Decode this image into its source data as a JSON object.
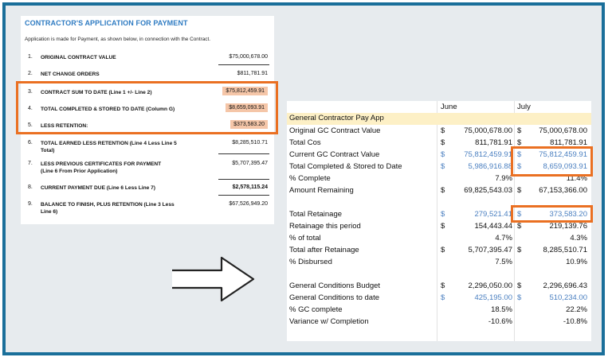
{
  "form": {
    "title": "CONTRACTOR'S APPLICATION FOR PAYMENT",
    "intro": "Application is made for Payment, as shown below, in connection with the Contract.",
    "rows": [
      {
        "num": "1.",
        "label": "ORIGINAL CONTRACT VALUE",
        "value": "$75,000,678.00"
      },
      {
        "num": "2.",
        "label": "NET CHANGE ORDERS",
        "value": "$811,781.91"
      },
      {
        "num": "3.",
        "label": "CONTRACT SUM TO DATE (Line 1 +/- Line 2)",
        "value": "$75,812,459.91"
      },
      {
        "num": "4.",
        "label": "TOTAL COMPLETED & STORED TO DATE (Column G)",
        "value": "$8,659,093.91"
      },
      {
        "num": "5.",
        "label": "LESS RETENTION:",
        "value": "$373,583.20"
      },
      {
        "num": "6.",
        "label": "TOTAL EARNED LESS RETENTION (Line 4 Less Line 5\nTotal)",
        "value": "$8,285,510.71"
      },
      {
        "num": "7.",
        "label": "LESS PREVIOUS CERTIFICATES FOR PAYMENT\n(Line 6 From Prior Application)",
        "value": "$5,707,395.47"
      },
      {
        "num": "8.",
        "label": "CURRENT PAYMENT DUE (Line 6 Less Line 7)",
        "value": "$2,578,115.24"
      },
      {
        "num": "9.",
        "label": "BALANCE TO FINISH, PLUS RETENTION (Line 3 Less\nLine 6)",
        "value": "$67,526,949.20"
      }
    ]
  },
  "sheet": {
    "col_june": "June",
    "col_july": "July",
    "section_title": "General Contractor Pay App",
    "rows": [
      {
        "label": "Original GC Contract Value",
        "d1": "$",
        "june": "75,000,678.00",
        "d2": "$",
        "july": "75,000,678.00"
      },
      {
        "label": "Total Cos",
        "d1": "$",
        "june": "811,781.91",
        "d2": "$",
        "july": "811,781.91"
      },
      {
        "label": "Current GC Contract Value",
        "d1": "$",
        "june": "75,812,459.91",
        "d2": "$",
        "july": "75,812,459.91"
      },
      {
        "label": "Total Completed & Stored to Date",
        "d1": "$",
        "june": "5,986,916.88",
        "d2": "$",
        "july": "8,659,093.91"
      },
      {
        "label": "% Complete",
        "d1": "",
        "june": "7.9%",
        "d2": "",
        "july": "11.4%"
      },
      {
        "label": "Amount Remaining",
        "d1": "$",
        "june": "69,825,543.03",
        "d2": "$",
        "july": "67,153,366.00"
      },
      {
        "label": "Total Retainage",
        "d1": "$",
        "june": "279,521.41",
        "d2": "$",
        "july": "373,583.20"
      },
      {
        "label": "Retainage this period",
        "d1": "$",
        "june": "154,443.44",
        "d2": "$",
        "july": "219,139.76"
      },
      {
        "label": "% of total",
        "d1": "",
        "june": "4.7%",
        "d2": "",
        "july": "4.3%"
      },
      {
        "label": "Total after Retainage",
        "d1": "$",
        "june": "5,707,395.47",
        "d2": "$",
        "july": "8,285,510.71"
      },
      {
        "label": "% Disbursed",
        "d1": "",
        "june": "7.5%",
        "d2": "",
        "july": "10.9%"
      },
      {
        "label": "General Conditions Budget",
        "d1": "$",
        "june": "2,296,050.00",
        "d2": "$",
        "july": "2,296,696.43"
      },
      {
        "label": "General Conditions to date",
        "d1": "$",
        "june": "425,195.00",
        "d2": "$",
        "july": "510,234.00"
      },
      {
        "label": "% GC complete",
        "d1": "",
        "june": "18.5%",
        "d2": "",
        "july": "22.2%"
      },
      {
        "label": "Variance w/ Completion",
        "d1": "",
        "june": "-10.6%",
        "d2": "",
        "july": "-10.8%"
      }
    ]
  },
  "icons": {
    "arrow": "arrow-right-icon"
  },
  "colors": {
    "frame": "#1a6f9a",
    "highlight_box": "#ea7022",
    "title": "#2e7bc2",
    "link_blue": "#4a7fc0",
    "band": "#fdf0c6",
    "cell_highlight": "#f5c6a8"
  }
}
